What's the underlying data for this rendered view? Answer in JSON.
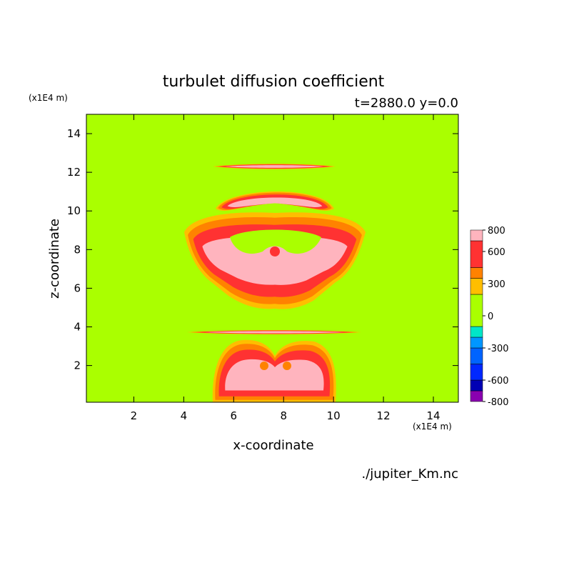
{
  "chart_data": {
    "type": "contour",
    "title": "turbulet diffusion coefficient",
    "subtitle": "t=2880.0 y=0.0",
    "x_label": "x-coordinate",
    "y_label": "z-coordinate",
    "x_unit": "(x1E4 m)",
    "y_unit": "(x1E4 m)",
    "source": "./jupiter_Km.nc",
    "xlim": [
      0.1,
      15
    ],
    "ylim": [
      0.1,
      15
    ],
    "xticks": [
      2,
      4,
      6,
      8,
      10,
      12,
      14
    ],
    "yticks": [
      2,
      4,
      6,
      8,
      10,
      12,
      14
    ],
    "colorbar": {
      "levels": [
        -800,
        -700,
        -600,
        -450,
        -300,
        -200,
        -100,
        200,
        350,
        450,
        700,
        800
      ],
      "colors": [
        "#8a00b0",
        "#0000b4",
        "#0028ff",
        "#0064ff",
        "#0096ff",
        "#00e6c8",
        "#aaff00",
        "#ffbe00",
        "#ff8200",
        "#ff3232",
        "#ffb4be"
      ],
      "ticks": [
        800,
        600,
        300,
        0,
        -300,
        -600,
        -800
      ]
    }
  }
}
